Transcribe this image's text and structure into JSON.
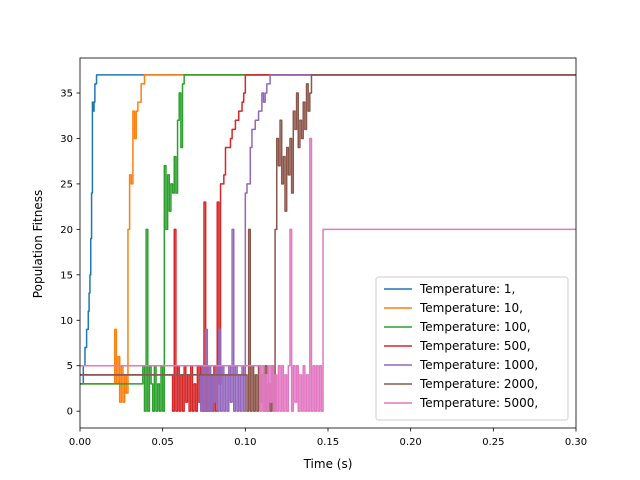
{
  "chart_data": {
    "type": "line",
    "title": "",
    "xlabel": "Time (s)",
    "ylabel": "Population Fitness",
    "xlim": [
      0.0,
      0.3
    ],
    "ylim": [
      -1.85,
      38.85
    ],
    "xticks": [
      0.0,
      0.05,
      0.1,
      0.15,
      0.2,
      0.25,
      0.3
    ],
    "xtick_labels": [
      "0.00",
      "0.05",
      "0.10",
      "0.15",
      "0.20",
      "0.25",
      "0.30"
    ],
    "yticks": [
      0,
      5,
      10,
      15,
      20,
      25,
      30,
      35
    ],
    "ytick_labels": [
      "0",
      "5",
      "10",
      "15",
      "20",
      "25",
      "30",
      "35"
    ],
    "grid": false,
    "legend_position": "bottom-right",
    "series": [
      {
        "name": "Temperature: 1,",
        "color": "#1f77b4",
        "x": [
          0,
          0.002,
          0.003,
          0.004,
          0.005,
          0.0055,
          0.006,
          0.0065,
          0.007,
          0.0075,
          0.008,
          0.0085,
          0.009,
          0.01,
          0.3
        ],
        "y": [
          3,
          5,
          7,
          9,
          11,
          13,
          15,
          19,
          24,
          34,
          33,
          34,
          36,
          37,
          37
        ]
      },
      {
        "name": "Temperature: 10,",
        "color": "#ff7f0e",
        "x": [
          0,
          0.02,
          0.021,
          0.022,
          0.023,
          0.024,
          0.025,
          0.026,
          0.027,
          0.028,
          0.029,
          0.03,
          0.031,
          0.032,
          0.033,
          0.034,
          0.035,
          0.036,
          0.037,
          0.038,
          0.039,
          0.3
        ],
        "y": [
          3,
          3,
          9,
          3,
          6,
          1,
          5,
          1,
          4,
          2,
          20,
          26,
          25,
          33,
          30,
          33,
          34,
          34,
          36,
          36,
          37,
          37
        ]
      },
      {
        "name": "Temperature: 100,",
        "color": "#2ca02c",
        "x": [
          0,
          0.03,
          0.038,
          0.039,
          0.04,
          0.041,
          0.042,
          0.043,
          0.044,
          0.045,
          0.046,
          0.047,
          0.048,
          0.049,
          0.05,
          0.051,
          0.052,
          0.053,
          0.054,
          0.055,
          0.056,
          0.057,
          0.058,
          0.059,
          0.06,
          0.061,
          0.062,
          0.063,
          0.3
        ],
        "y": [
          3,
          3,
          5,
          0,
          20,
          0,
          5,
          3,
          0,
          5,
          0,
          3,
          0,
          5,
          0,
          27,
          20,
          26,
          22,
          25,
          24,
          28,
          24,
          32,
          35,
          29,
          36,
          37,
          37
        ]
      },
      {
        "name": "Temperature: 500,",
        "color": "#d62728",
        "x": [
          0,
          0.055,
          0.056,
          0.057,
          0.058,
          0.059,
          0.06,
          0.061,
          0.062,
          0.063,
          0.064,
          0.065,
          0.066,
          0.067,
          0.068,
          0.069,
          0.07,
          0.071,
          0.072,
          0.073,
          0.074,
          0.075,
          0.076,
          0.077,
          0.078,
          0.079,
          0.08,
          0.081,
          0.082,
          0.083,
          0.084,
          0.085,
          0.086,
          0.087,
          0.088,
          0.089,
          0.09,
          0.091,
          0.092,
          0.093,
          0.094,
          0.095,
          0.096,
          0.097,
          0.098,
          0.099,
          0.1,
          0.3
        ],
        "y": [
          4,
          4,
          0,
          20,
          0,
          5,
          0,
          4,
          0,
          5,
          1,
          4,
          0,
          5,
          0,
          3,
          0,
          5,
          1,
          5,
          0,
          23,
          0,
          5,
          0,
          4,
          0,
          5,
          0,
          23,
          3,
          25,
          25,
          26,
          29,
          29,
          29,
          30,
          31,
          31,
          32,
          32,
          33,
          33,
          34,
          35,
          37,
          37
        ]
      },
      {
        "name": "Temperature: 1000,",
        "color": "#9467bd",
        "x": [
          0,
          0.072,
          0.073,
          0.074,
          0.075,
          0.076,
          0.077,
          0.078,
          0.079,
          0.08,
          0.081,
          0.082,
          0.083,
          0.084,
          0.085,
          0.086,
          0.087,
          0.088,
          0.089,
          0.09,
          0.091,
          0.092,
          0.093,
          0.094,
          0.095,
          0.096,
          0.097,
          0.098,
          0.099,
          0.1,
          0.101,
          0.102,
          0.103,
          0.104,
          0.105,
          0.106,
          0.107,
          0.108,
          0.109,
          0.11,
          0.111,
          0.112,
          0.113,
          0.114,
          0.115,
          0.3
        ],
        "y": [
          4,
          4,
          0,
          5,
          0,
          9,
          0,
          5,
          0,
          4,
          1,
          5,
          0,
          9,
          0,
          5,
          0,
          4,
          0,
          5,
          1,
          20,
          0,
          5,
          0,
          4,
          0,
          5,
          0,
          24,
          25,
          25,
          29,
          31,
          31,
          32,
          32,
          33,
          33,
          35,
          34,
          35,
          36,
          36,
          37,
          37
        ]
      },
      {
        "name": "Temperature: 2000,",
        "color": "#8c564b",
        "x": [
          0,
          0.1,
          0.101,
          0.102,
          0.103,
          0.104,
          0.105,
          0.106,
          0.107,
          0.108,
          0.109,
          0.11,
          0.111,
          0.112,
          0.113,
          0.114,
          0.115,
          0.116,
          0.117,
          0.118,
          0.119,
          0.12,
          0.121,
          0.122,
          0.123,
          0.124,
          0.125,
          0.126,
          0.127,
          0.128,
          0.129,
          0.13,
          0.131,
          0.132,
          0.133,
          0.134,
          0.135,
          0.136,
          0.137,
          0.138,
          0.139,
          0.14,
          0.141,
          0.3
        ],
        "y": [
          4,
          4,
          0,
          20,
          0,
          5,
          0,
          4,
          0,
          5,
          1,
          4,
          0,
          5,
          0,
          3,
          0,
          5,
          0,
          20,
          30,
          27,
          32,
          25,
          28,
          22,
          29,
          26,
          30,
          24,
          33,
          31,
          35,
          29,
          32,
          30,
          34,
          31,
          36,
          33,
          35,
          37,
          37,
          37
        ]
      },
      {
        "name": "Temperature: 5000,",
        "color": "#e377c2",
        "x": [
          0,
          0.108,
          0.109,
          0.11,
          0.111,
          0.112,
          0.113,
          0.114,
          0.115,
          0.116,
          0.117,
          0.118,
          0.119,
          0.12,
          0.121,
          0.122,
          0.123,
          0.124,
          0.125,
          0.126,
          0.127,
          0.128,
          0.129,
          0.13,
          0.131,
          0.132,
          0.133,
          0.134,
          0.135,
          0.136,
          0.137,
          0.138,
          0.139,
          0.14,
          0.141,
          0.142,
          0.143,
          0.144,
          0.145,
          0.146,
          0.147,
          0.3
        ],
        "y": [
          5,
          5,
          0,
          5,
          0,
          4,
          0,
          5,
          1,
          5,
          0,
          4,
          0,
          5,
          0,
          5,
          0,
          4,
          0,
          5,
          20,
          0,
          5,
          1,
          5,
          0,
          4,
          0,
          5,
          0,
          4,
          0,
          30,
          0,
          5,
          0,
          5,
          0,
          5,
          0,
          20,
          20
        ]
      }
    ]
  }
}
